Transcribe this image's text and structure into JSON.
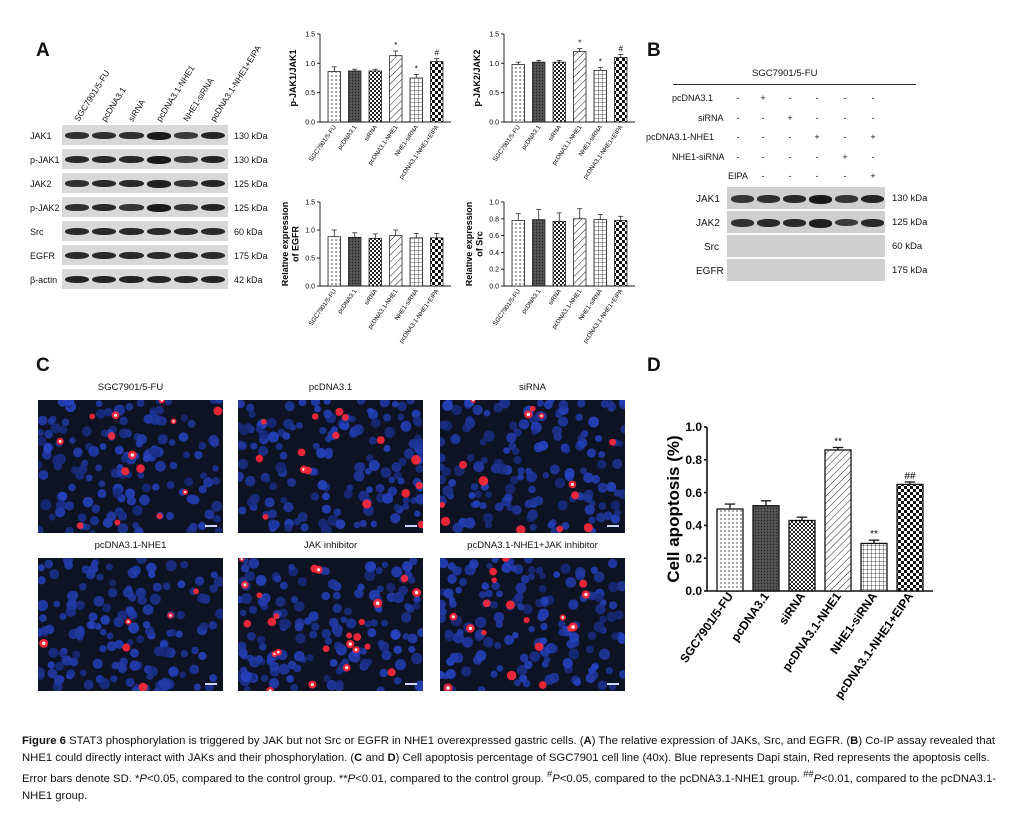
{
  "panels": {
    "a": "A",
    "b": "B",
    "c": "C",
    "d": "D"
  },
  "panelA": {
    "lanes": [
      "SGC7901/5-FU",
      "pcDNA3.1",
      "siRNA",
      "pcDNA3.1-NHE1",
      "NHE1-siRNA",
      "pcDNA3.1-NHE1+EIPA"
    ],
    "rows": [
      {
        "label": "JAK1",
        "kda": "130 kDa",
        "intensity": [
          0.75,
          0.75,
          0.75,
          0.95,
          0.65,
          0.85
        ]
      },
      {
        "label": "p-JAK1",
        "kda": "130 kDa",
        "intensity": [
          0.8,
          0.8,
          0.8,
          0.95,
          0.65,
          0.85
        ]
      },
      {
        "label": "JAK2",
        "kda": "125 kDa",
        "intensity": [
          0.75,
          0.8,
          0.8,
          0.9,
          0.7,
          0.85
        ]
      },
      {
        "label": "p-JAK2",
        "kda": "125 kDa",
        "intensity": [
          0.75,
          0.8,
          0.7,
          0.95,
          0.7,
          0.85
        ]
      },
      {
        "label": "Src",
        "kda": "60 kDa",
        "intensity": [
          0.8,
          0.8,
          0.8,
          0.8,
          0.8,
          0.8
        ]
      },
      {
        "label": "EGFR",
        "kda": "175 kDa",
        "intensity": [
          0.8,
          0.8,
          0.8,
          0.8,
          0.8,
          0.8
        ]
      },
      {
        "label": "β-actin",
        "kda": "42 kDa",
        "intensity": [
          0.85,
          0.85,
          0.85,
          0.85,
          0.85,
          0.85
        ]
      }
    ]
  },
  "chart_data": [
    {
      "id": "jak1",
      "type": "bar",
      "ylabel": "p-JAK1/JAK1",
      "ylim": [
        0,
        1.5
      ],
      "yticks": [
        "0.0",
        "0.5",
        "1.0",
        "1.5"
      ],
      "categories": [
        "SGC7901/5-FU",
        "pcDNA3.1",
        "siRNA",
        "pcDNA3.1-NHE1",
        "NHE1-siRNA",
        "pcDNA3.1-NHE1+EIPA"
      ],
      "values": [
        0.86,
        0.87,
        0.87,
        1.13,
        0.75,
        1.03
      ],
      "errors": [
        0.08,
        0.03,
        0.03,
        0.08,
        0.06,
        0.05
      ],
      "annotations": [
        "",
        "",
        "",
        "*",
        "*",
        "#"
      ]
    },
    {
      "id": "jak2",
      "type": "bar",
      "ylabel": "p-JAK2/JAK2",
      "ylim": [
        0,
        1.5
      ],
      "yticks": [
        "0.0",
        "0.5",
        "1.0",
        "1.5"
      ],
      "categories": [
        "SGC7901/5-FU",
        "pcDNA3.1",
        "siRNA",
        "pcDNA3.1-NHE1",
        "NHE1-siRNA",
        "pcDNA3.1-NHE1+EIPA"
      ],
      "values": [
        0.98,
        1.02,
        1.02,
        1.2,
        0.88,
        1.1
      ],
      "errors": [
        0.04,
        0.03,
        0.03,
        0.05,
        0.05,
        0.05
      ],
      "annotations": [
        "",
        "",
        "",
        "*",
        "*",
        "#"
      ]
    },
    {
      "id": "egfr",
      "type": "bar",
      "ylabel": "Relative expression of EGFR",
      "ylim": [
        0,
        1.5
      ],
      "yticks": [
        "0.0",
        "0.5",
        "1.0",
        "1.5"
      ],
      "categories": [
        "SGC7901/5-FU",
        "pcDNA3.1",
        "siRNA",
        "pcDNA3.1-NHE1",
        "NHE1-siRNA",
        "pcDNA3.1-NHE1+EIPA"
      ],
      "values": [
        0.88,
        0.87,
        0.85,
        0.9,
        0.86,
        0.86
      ],
      "errors": [
        0.12,
        0.08,
        0.08,
        0.1,
        0.08,
        0.08
      ],
      "annotations": [
        "",
        "",
        "",
        "",
        "",
        ""
      ]
    },
    {
      "id": "src",
      "type": "bar",
      "ylabel": "Relative expression of Src",
      "ylim": [
        0,
        1.0
      ],
      "yticks": [
        "0.0",
        "0.2",
        "0.4",
        "0.6",
        "0.8",
        "1.0"
      ],
      "categories": [
        "SGC7901/5-FU",
        "pcDNA3.1",
        "siRNA",
        "pcDNA3.1-NHE1",
        "NHE1-siRNA",
        "pcDNA3.1-NHE1+EIPA"
      ],
      "values": [
        0.78,
        0.79,
        0.77,
        0.8,
        0.79,
        0.78
      ],
      "errors": [
        0.08,
        0.12,
        0.1,
        0.12,
        0.06,
        0.05
      ],
      "annotations": [
        "",
        "",
        "",
        "",
        "",
        ""
      ]
    },
    {
      "id": "apoptosis",
      "type": "bar",
      "ylabel": "Cell apoptosis (%)",
      "ylim": [
        0,
        1.0
      ],
      "yticks": [
        "0.0",
        "0.2",
        "0.4",
        "0.6",
        "0.8",
        "1.0"
      ],
      "categories": [
        "SGC7901/5-FU",
        "pcDNA3.1",
        "siRNA",
        "pcDNA3.1-NHE1",
        "NHE1-siRNA",
        "pcDNA3.1-NHE1+EIPA"
      ],
      "values": [
        0.5,
        0.52,
        0.43,
        0.86,
        0.29,
        0.65
      ],
      "errors": [
        0.03,
        0.03,
        0.02,
        0.015,
        0.02,
        0.015
      ],
      "annotations": [
        "",
        "",
        "",
        "**",
        "**",
        "##"
      ]
    }
  ],
  "panelB": {
    "title": "SGC7901/5-FU",
    "conditions": [
      {
        "label": "pcDNA3.1",
        "marks": [
          "-",
          "+",
          "-",
          "-",
          "-",
          "-"
        ]
      },
      {
        "label": "siRNA",
        "marks": [
          "-",
          "-",
          "+",
          "-",
          "-",
          "-"
        ]
      },
      {
        "label": "pcDNA3.1-NHE1",
        "marks": [
          "-",
          "-",
          "-",
          "+",
          "-",
          "+"
        ]
      },
      {
        "label": "NHE1-siRNA",
        "marks": [
          "-",
          "-",
          "-",
          "-",
          "+",
          "-"
        ]
      },
      {
        "label": "EIPA",
        "marks": [
          "-",
          "-",
          "-",
          "-",
          "-",
          "+"
        ]
      }
    ],
    "rows": [
      {
        "label": "JAK1",
        "kda": "130 kDa",
        "intensity": [
          0.7,
          0.75,
          0.8,
          0.95,
          0.7,
          0.85
        ]
      },
      {
        "label": "JAK2",
        "kda": "125 kDa",
        "intensity": [
          0.75,
          0.8,
          0.8,
          0.9,
          0.65,
          0.8
        ]
      },
      {
        "label": "Src",
        "kda": "60 kDa",
        "intensity": [
          0,
          0,
          0,
          0,
          0,
          0
        ]
      },
      {
        "label": "EGFR",
        "kda": "175 kDa",
        "intensity": [
          0,
          0,
          0,
          0,
          0,
          0
        ]
      }
    ]
  },
  "panelC": {
    "images": [
      {
        "title": "SGC7901/5-FU",
        "red": 14
      },
      {
        "title": "pcDNA3.1",
        "red": 16
      },
      {
        "title": "siRNA",
        "red": 14
      },
      {
        "title": "pcDNA3.1-NHE1",
        "red": 6
      },
      {
        "title": "JAK inhibitor",
        "red": 24
      },
      {
        "title": "pcDNA3.1-NHE1+JAK inhibitor",
        "red": 18
      }
    ]
  },
  "caption": {
    "fig": "Figure 6",
    "t1": " STAT3 phosphorylation is triggered by JAK but not Src or EGFR in NHE1 overexpressed gastric cells. (",
    "A": "A",
    "t2": ") The relative expression of JAKs, Src, and EGFR. (",
    "B": "B",
    "t3": ") Co-IP assay revealed that NHE1 could directly interact with JAKs and their phosphorylation. (",
    "C": "C",
    "t4": " and ",
    "D": "D",
    "t5": ") Cell apoptosis percentage of SGC7901 cell line (40x). Blue represents Dapi stain, Red represents the apoptosis cells. Error bars denote SD. *",
    "p1": "P",
    "t6": "<0.05, compared to the control group. **",
    "p2": "P",
    "t7": "<0.01, compared to the control group. ",
    "sup1": "#",
    "p3": "P",
    "t8": "<0.05, compared to the pcDNA3.1-NHE1 group. ",
    "sup2": "##",
    "p4": "P",
    "t9": "<0.01, compared to the pcDNA3.1-NHE1 group."
  },
  "colors": {
    "bar_fill": "#ffffff",
    "bar_stroke": "#111111",
    "dapi": "#2a4fb8",
    "apoptotic": "#ff2a3a"
  }
}
